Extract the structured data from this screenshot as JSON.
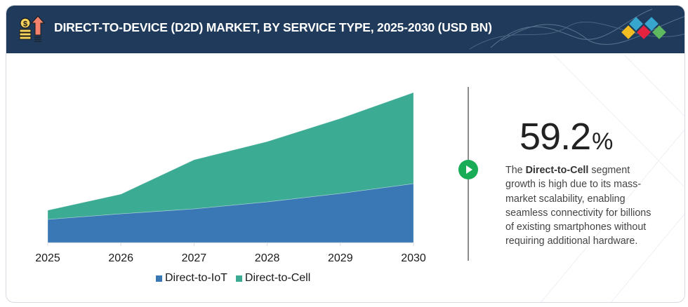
{
  "header": {
    "title": "DIRECT-TO-DEVICE (D2D) MARKET, BY SERVICE TYPE, 2025-2030 (USD BN)",
    "icon": "coins-growth-arrow-icon",
    "logo": "diamond-tiles-logo"
  },
  "colors": {
    "header_bg": "#1f3a5a",
    "iot": "#3a78b5",
    "cell": "#3bab93",
    "play": "#17ac55"
  },
  "chart_data": {
    "type": "area",
    "stacked": true,
    "title": "DIRECT-TO-DEVICE (D2D) MARKET, BY SERVICE TYPE, 2025-2030 (USD BN)",
    "xlabel": "",
    "ylabel": "",
    "x": [
      "2025",
      "2026",
      "2027",
      "2028",
      "2029",
      "2030"
    ],
    "series": [
      {
        "name": "Direct-to-IoT",
        "color": "#3a78b5",
        "values": [
          33,
          41,
          48,
          58,
          70,
          84
        ]
      },
      {
        "name": "Direct-to-Cell",
        "color": "#3bab93",
        "values": [
          13,
          28,
          70,
          86,
          107,
          130
        ]
      }
    ],
    "value_note": "No y-axis shown; values are relative magnitudes estimated from area heights",
    "ylim": [
      0,
      230
    ],
    "grid": false,
    "legend": "bottom-center"
  },
  "legend": {
    "items": [
      {
        "label": "Direct-to-IoT"
      },
      {
        "label": "Direct-to-Cell"
      }
    ]
  },
  "insight": {
    "value": "59.2",
    "unit": "%",
    "text_prefix": "The ",
    "text_bold": "Direct-to-Cell",
    "text_suffix": " segment growth is high due to its mass-market scalability, enabling seamless connectivity for billions of existing smartphones without requiring additional hardware.",
    "icon": "play-icon"
  }
}
